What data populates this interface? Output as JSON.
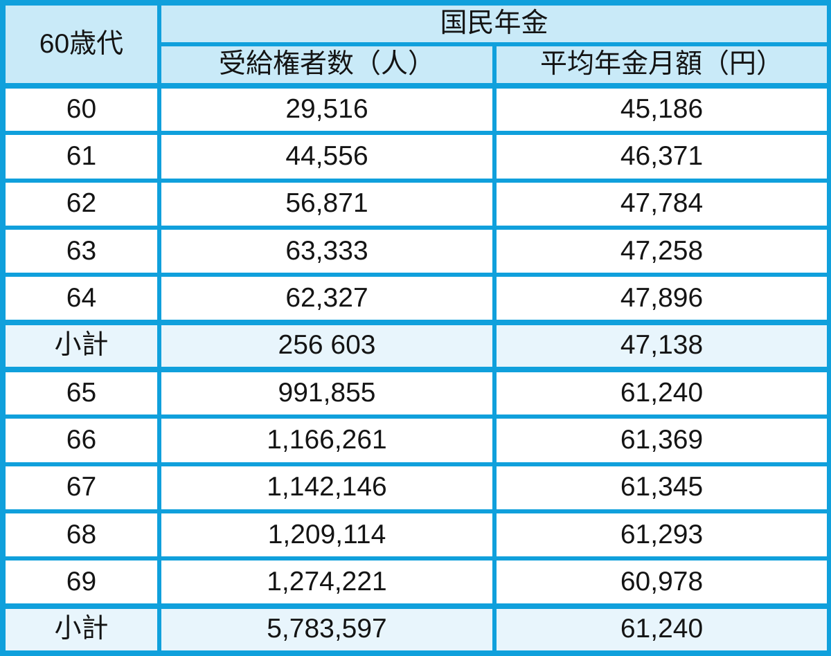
{
  "chart_data": {
    "type": "table",
    "corner_header": "60歳代",
    "group_header": "国民年金",
    "columns": [
      "受給権者数（人）",
      "平均年金月額（円）"
    ],
    "rows": [
      {
        "label": "60",
        "values": [
          "29,516",
          "45,186"
        ],
        "subtotal": false
      },
      {
        "label": "61",
        "values": [
          "44,556",
          "46,371"
        ],
        "subtotal": false
      },
      {
        "label": "62",
        "values": [
          "56,871",
          "47,784"
        ],
        "subtotal": false
      },
      {
        "label": "63",
        "values": [
          "63,333",
          "47,258"
        ],
        "subtotal": false
      },
      {
        "label": "64",
        "values": [
          "62,327",
          "47,896"
        ],
        "subtotal": false
      },
      {
        "label": "小計",
        "values": [
          "256 603",
          "47,138"
        ],
        "subtotal": true
      },
      {
        "label": "65",
        "values": [
          "991,855",
          "61,240"
        ],
        "subtotal": false
      },
      {
        "label": "66",
        "values": [
          "1,166,261",
          "61,369"
        ],
        "subtotal": false
      },
      {
        "label": "67",
        "values": [
          "1,142,146",
          "61,345"
        ],
        "subtotal": false
      },
      {
        "label": "68",
        "values": [
          "1,209,114",
          "61,293"
        ],
        "subtotal": false
      },
      {
        "label": "69",
        "values": [
          "1,274,221",
          "60,978"
        ],
        "subtotal": false
      },
      {
        "label": "小計",
        "values": [
          "5,783,597",
          "61,240"
        ],
        "subtotal": true
      }
    ]
  },
  "colors": {
    "border": "#10a0dc",
    "header_bg": "#c9eaf8",
    "subtotal_bg": "#e8f5fc",
    "cell_bg": "#ffffff",
    "text": "#141414"
  }
}
